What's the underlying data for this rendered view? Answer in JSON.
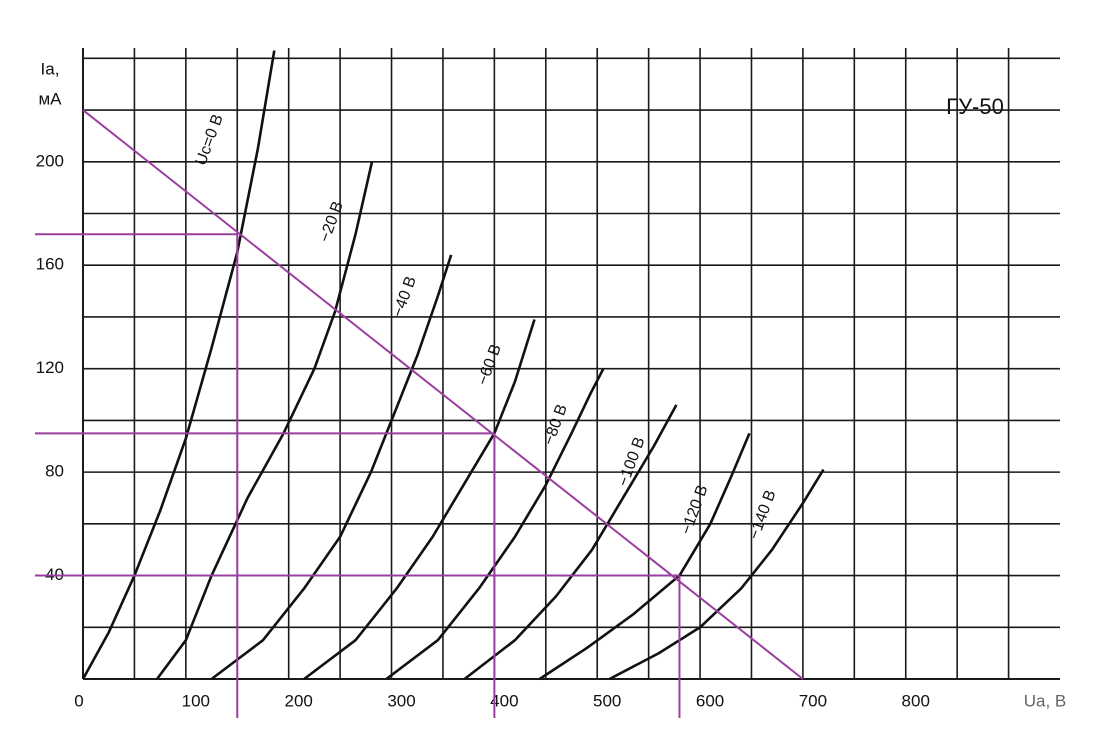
{
  "chart_data": {
    "type": "line",
    "title": "ГУ-50",
    "x_label": "Ua, В",
    "y_label": [
      "Ia,",
      "мА"
    ],
    "xlim": [
      0,
      950
    ],
    "ylim": [
      0,
      244
    ],
    "xticks": [
      0,
      100,
      200,
      300,
      400,
      500,
      600,
      700,
      800
    ],
    "yticks": [
      40,
      80,
      120,
      160,
      200
    ],
    "xgrid": [
      50,
      100,
      150,
      200,
      250,
      300,
      350,
      400,
      450,
      500,
      550,
      600,
      650,
      700,
      750,
      800,
      850,
      900
    ],
    "ygrid": [
      20,
      40,
      60,
      80,
      100,
      120,
      140,
      160,
      180,
      200,
      220,
      240
    ],
    "grid_color": "#1a1a1a",
    "series": [
      {
        "name": "Uc=0 В",
        "color": "#111111",
        "x": [
          0,
          25,
          50,
          75,
          100,
          125,
          150,
          170,
          186
        ],
        "values": [
          0,
          18,
          40,
          65,
          93,
          128,
          165,
          205,
          243
        ]
      },
      {
        "name": "−20 В",
        "color": "#111111",
        "x": [
          72,
          100,
          125,
          160,
          195,
          225,
          245,
          265,
          281
        ],
        "values": [
          0,
          15,
          40,
          70,
          95,
          120,
          142,
          172,
          200
        ]
      },
      {
        "name": "−40 В",
        "color": "#111111",
        "x": [
          125,
          175,
          215,
          250,
          280,
          305,
          325,
          345,
          358
        ],
        "values": [
          0,
          15,
          35,
          55,
          80,
          105,
          125,
          148,
          164
        ]
      },
      {
        "name": "−60 В",
        "color": "#111111",
        "x": [
          215,
          265,
          305,
          340,
          370,
          400,
          420,
          439
        ],
        "values": [
          0,
          15,
          35,
          55,
          75,
          95,
          115,
          139
        ]
      },
      {
        "name": "−80 В",
        "color": "#111111",
        "x": [
          295,
          345,
          385,
          420,
          450,
          475,
          493,
          506
        ],
        "values": [
          0,
          15,
          35,
          55,
          75,
          95,
          110,
          120
        ]
      },
      {
        "name": "−100 В",
        "color": "#111111",
        "x": [
          371,
          420,
          460,
          495,
          525,
          555,
          577
        ],
        "values": [
          0,
          15,
          32,
          50,
          70,
          90,
          106
        ]
      },
      {
        "name": "−120 В",
        "color": "#111111",
        "x": [
          444,
          490,
          535,
          580,
          610,
          630,
          648
        ],
        "values": [
          0,
          12,
          25,
          40,
          60,
          78,
          95
        ]
      },
      {
        "name": "−140 В",
        "color": "#111111",
        "x": [
          512,
          560,
          600,
          640,
          670,
          700,
          720
        ],
        "values": [
          0,
          10,
          20,
          35,
          50,
          68,
          81
        ]
      }
    ],
    "load_line": {
      "color": "#9b3ea0",
      "x": [
        0,
        700
      ],
      "values": [
        220,
        0
      ]
    },
    "operating_points": {
      "color": "#9b3ea0",
      "x": [
        150,
        400,
        580
      ],
      "values": [
        172,
        95,
        40
      ]
    }
  }
}
